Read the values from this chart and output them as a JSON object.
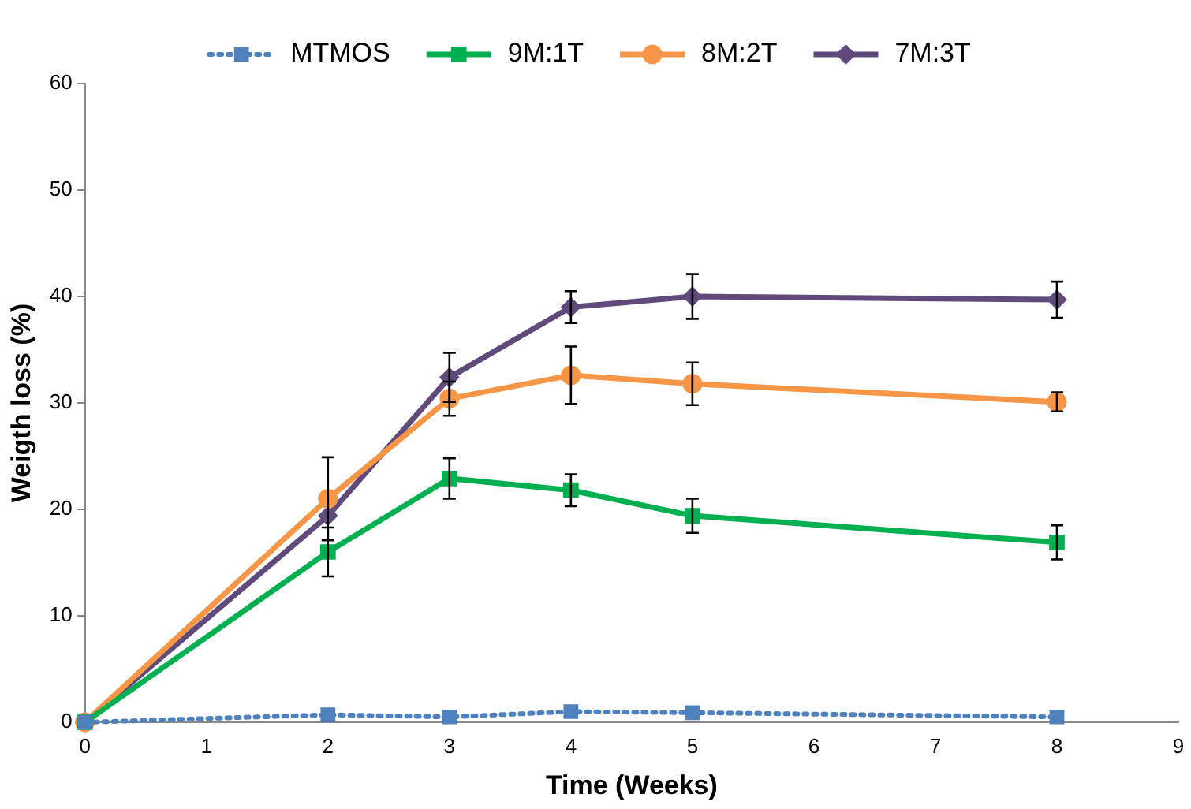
{
  "chart_data": {
    "type": "line",
    "xlabel": "Time (Weeks)",
    "ylabel": "Weigth loss (%)",
    "x": [
      0,
      2,
      3,
      4,
      5,
      8
    ],
    "xlim": [
      0,
      9
    ],
    "xticks": [
      0,
      1,
      2,
      3,
      4,
      5,
      6,
      7,
      8,
      9
    ],
    "ylim": [
      0,
      60
    ],
    "yticks": [
      0,
      10,
      20,
      30,
      40,
      50,
      60
    ],
    "grid": false,
    "legend": "top",
    "series": [
      {
        "name": "MTMOS",
        "color": "#4f81bd",
        "marker": "square",
        "line_style": "dotted",
        "values": [
          0,
          0.7,
          0.5,
          1.0,
          0.9,
          0.5
        ]
      },
      {
        "name": "9M:1T",
        "color": "#00b050",
        "marker": "square",
        "line_style": "solid",
        "values": [
          0,
          16,
          22.9,
          21.8,
          19.4,
          16.9
        ],
        "errors": [
          null,
          2.3,
          1.9,
          1.5,
          1.6,
          1.6
        ]
      },
      {
        "name": "8M:2T",
        "color": "#f79646",
        "marker": "circle",
        "line_style": "solid",
        "values": [
          0,
          21,
          30.4,
          32.6,
          31.8,
          30.1
        ],
        "errors": [
          null,
          3.9,
          1.6,
          2.7,
          2,
          0.9
        ]
      },
      {
        "name": "7M:3T",
        "color": "#604a7b",
        "marker": "diamond",
        "line_style": "solid",
        "values": [
          0,
          19.4,
          32.4,
          39.0,
          40,
          39.7
        ],
        "errors": [
          null,
          null,
          2.3,
          1.5,
          2.1,
          1.7
        ]
      }
    ]
  }
}
